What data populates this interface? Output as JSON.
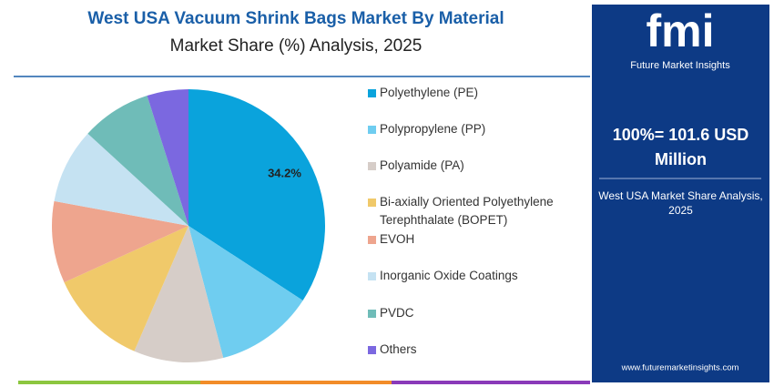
{
  "chart_data": {
    "type": "pie",
    "title": "West USA Vacuum Shrink Bags Market By Material",
    "subtitle": "Market Share (%) Analysis, 2025",
    "categories": [
      "Polyethylene (PE)",
      "Polypropylene (PP)",
      "Polyamide (PA)",
      "Bi-axially Oriented Polyethylene Terephthalate (BOPET)",
      "EVOH",
      "Inorganic Oxide Coatings",
      "PVDC",
      "Others"
    ],
    "values": [
      34.2,
      11.7,
      10.6,
      11.7,
      9.7,
      8.9,
      8.3,
      4.9
    ],
    "value_labels": [
      "34.2%",
      null,
      null,
      null,
      null,
      null,
      null,
      null
    ],
    "colors": [
      "#0aa3dc",
      "#6fcdf0",
      "#d6cdc8",
      "#f0c96a",
      "#eea58e",
      "#c5e2f2",
      "#6fbcb8",
      "#7b68e0"
    ]
  },
  "panel": {
    "logo": "fmi",
    "brand": "Future Market Insights",
    "total": "100%= 101.6 USD Million",
    "caption": "West USA Market Share Analysis, 2025",
    "website": "www.futuremarketinsights.com"
  }
}
